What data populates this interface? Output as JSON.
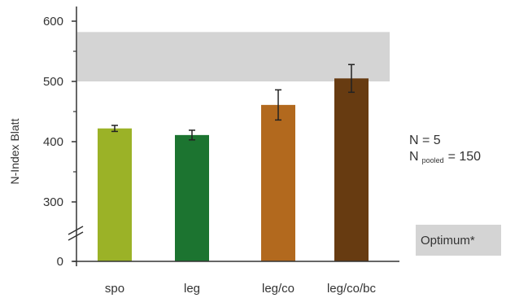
{
  "chart_data": {
    "type": "bar",
    "categories": [
      "spo",
      "leg",
      "leg/co",
      "leg/co/bc"
    ],
    "values": [
      422,
      411,
      461,
      505
    ],
    "errors": [
      5,
      8,
      25,
      23
    ],
    "bar_colors": [
      "#9bb227",
      "#1c7430",
      "#b2691e",
      "#673b11"
    ],
    "ylabel": "N-Index Blatt",
    "yticks": [
      0,
      300,
      400,
      500,
      600
    ],
    "ylim": [
      0,
      620
    ],
    "axis_break": true,
    "optimum_band": [
      500,
      582
    ],
    "optimum_color": "#d4d4d4",
    "legend": {
      "label": "Optimum*",
      "placement": "right"
    },
    "annotation": {
      "n_text": "N = 5",
      "pooled_prefix": "N",
      "pooled_sub": "pooled",
      "pooled_value": "= 150"
    }
  }
}
